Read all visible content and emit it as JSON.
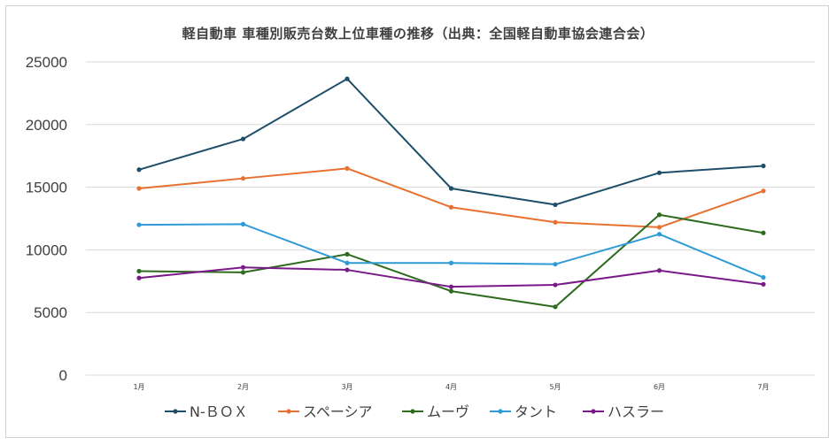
{
  "chart_data": {
    "type": "line",
    "title": "軽自動車 車種別販売台数上位車種の推移（出典：全国軽自動車協会連合会）",
    "categories": [
      "1月",
      "2月",
      "3月",
      "4月",
      "5月",
      "6月",
      "7月"
    ],
    "yticks": [
      "0",
      "5000",
      "10000",
      "15000",
      "20000",
      "25000"
    ],
    "ylim": [
      0,
      25000
    ],
    "grid": true,
    "legend_position": "bottom",
    "series": [
      {
        "name": "N-ＢＯＸ",
        "color": "#1f4e6b",
        "values": [
          16400,
          18850,
          23650,
          14900,
          13600,
          16150,
          16700
        ]
      },
      {
        "name": "スペーシア",
        "color": "#e87030",
        "values": [
          14900,
          15700,
          16500,
          13400,
          12200,
          11800,
          14700
        ]
      },
      {
        "name": "ムーヴ",
        "color": "#2e6b1e",
        "values": [
          8300,
          8200,
          9650,
          6700,
          5450,
          12800,
          11350
        ]
      },
      {
        "name": "タント",
        "color": "#2e9bd6",
        "values": [
          12000,
          12050,
          8950,
          8950,
          8850,
          11250,
          7800
        ]
      },
      {
        "name": "ハスラー",
        "color": "#7a1a8a",
        "values": [
          7750,
          8600,
          8400,
          7050,
          7200,
          8350,
          7250
        ]
      }
    ]
  }
}
